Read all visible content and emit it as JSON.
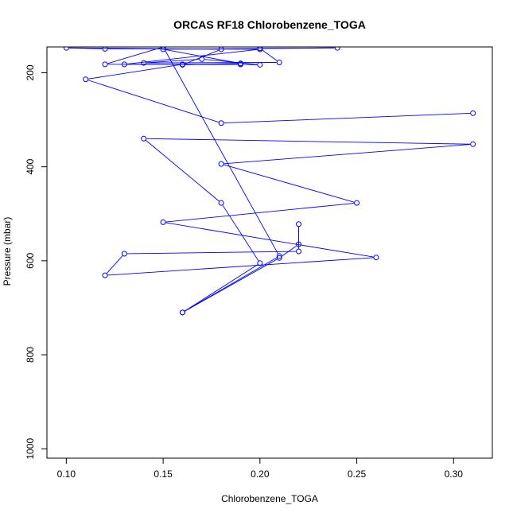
{
  "chart_data": {
    "type": "line",
    "title": "ORCAS RF18 Chlorobenzene_TOGA",
    "xlabel": "Chlorobenzene_TOGA",
    "ylabel": "Pressure (mbar)",
    "xlim": [
      0.09,
      0.32
    ],
    "ylim": [
      1020,
      145
    ],
    "y_reversed": true,
    "xticks": [
      0.1,
      0.15,
      0.2,
      0.25,
      0.3
    ],
    "xtick_labels": [
      "0.10",
      "0.15",
      "0.20",
      "0.25",
      "0.30"
    ],
    "yticks": [
      200,
      400,
      600,
      800,
      1000
    ],
    "ytick_labels": [
      "200",
      "400",
      "600",
      "800",
      "1000"
    ],
    "grid": false,
    "colors": {
      "series": "#0000ff",
      "axis": "#000000",
      "background": "#ffffff"
    },
    "series": [
      {
        "name": "Chlorobenzene_TOGA",
        "marker": "open-circle",
        "line": true,
        "points": [
          {
            "x": 0.16,
            "y": 710
          },
          {
            "x": 0.2,
            "y": 605
          },
          {
            "x": 0.18,
            "y": 477
          },
          {
            "x": 0.14,
            "y": 340
          },
          {
            "x": 0.31,
            "y": 352
          },
          {
            "x": 0.18,
            "y": 394
          },
          {
            "x": 0.25,
            "y": 477
          },
          {
            "x": 0.15,
            "y": 518
          },
          {
            "x": 0.26,
            "y": 593
          },
          {
            "x": 0.12,
            "y": 631
          },
          {
            "x": 0.13,
            "y": 585
          },
          {
            "x": 0.22,
            "y": 580
          },
          {
            "x": 0.22,
            "y": 522
          },
          {
            "x": 0.22,
            "y": 565
          },
          {
            "x": 0.21,
            "y": 594
          },
          {
            "x": 0.16,
            "y": 710
          },
          {
            "x": 0.21,
            "y": 590
          },
          {
            "x": 0.15,
            "y": 145
          },
          {
            "x": 0.12,
            "y": 182
          },
          {
            "x": 0.19,
            "y": 182
          },
          {
            "x": 0.2,
            "y": 183
          },
          {
            "x": 0.17,
            "y": 171
          },
          {
            "x": 0.14,
            "y": 179
          },
          {
            "x": 0.21,
            "y": 178
          },
          {
            "x": 0.2,
            "y": 148
          },
          {
            "x": 0.24,
            "y": 147
          },
          {
            "x": 0.15,
            "y": 150
          },
          {
            "x": 0.19,
            "y": 180
          },
          {
            "x": 0.16,
            "y": 183
          },
          {
            "x": 0.18,
            "y": 150
          },
          {
            "x": 0.1,
            "y": 147
          },
          {
            "x": 0.12,
            "y": 149
          },
          {
            "x": 0.2,
            "y": 150
          },
          {
            "x": 0.13,
            "y": 182
          },
          {
            "x": 0.19,
            "y": 182
          },
          {
            "x": 0.16,
            "y": 182
          },
          {
            "x": 0.11,
            "y": 214
          },
          {
            "x": 0.18,
            "y": 307
          },
          {
            "x": 0.31,
            "y": 286
          }
        ]
      }
    ]
  }
}
